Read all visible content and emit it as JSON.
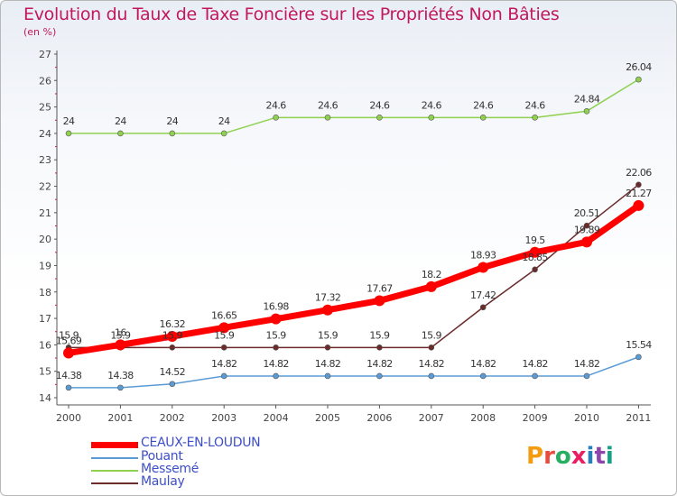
{
  "title": "Evolution du Taux de Taxe Foncière sur les Propriétés Non Bâties",
  "unit_label": "(en %)",
  "logo_text": "Proxiti",
  "chart_data": {
    "type": "line",
    "x": [
      "2000",
      "2001",
      "2002",
      "2003",
      "2004",
      "2005",
      "2006",
      "2007",
      "2008",
      "2009",
      "2010",
      "2011"
    ],
    "ylim": [
      14,
      27
    ],
    "yticks": [
      14,
      15,
      16,
      17,
      18,
      19,
      20,
      21,
      22,
      23,
      24,
      25,
      26,
      27
    ],
    "grid": false,
    "legend_position": "bottom-left",
    "series": [
      {
        "name": "CEAUX-EN-LOUDUN",
        "color": "#ff0000",
        "values": [
          15.69,
          16,
          16.32,
          16.65,
          16.98,
          17.32,
          17.67,
          18.2,
          18.93,
          19.5,
          19.89,
          21.27
        ],
        "labels": [
          "15.69",
          "16",
          "16.32",
          "16.65",
          "16.98",
          "17.32",
          "17.67",
          "18.2",
          "18.93",
          "19.5",
          "19.89",
          "21.27"
        ]
      },
      {
        "name": "Pouant",
        "color": "#5b9bd5",
        "values": [
          14.38,
          14.38,
          14.52,
          14.82,
          14.82,
          14.82,
          14.82,
          14.82,
          14.82,
          14.82,
          14.82,
          15.54
        ],
        "labels": [
          "14.38",
          "14.38",
          "14.52",
          "14.82",
          "14.82",
          "14.82",
          "14.82",
          "14.82",
          "14.82",
          "14.82",
          "14.82",
          "15.54"
        ]
      },
      {
        "name": "Messemé",
        "color": "#8fd14f",
        "values": [
          24,
          24,
          24,
          24,
          24.6,
          24.6,
          24.6,
          24.6,
          24.6,
          24.6,
          24.84,
          26.04
        ],
        "labels": [
          "24",
          "24",
          "24",
          "24",
          "24.6",
          "24.6",
          "24.6",
          "24.6",
          "24.6",
          "24.6",
          "24.84",
          "26.04"
        ]
      },
      {
        "name": "Maulay",
        "color": "#6b2b2b",
        "values": [
          15.9,
          15.9,
          15.9,
          15.9,
          15.9,
          15.9,
          15.9,
          15.9,
          17.42,
          18.85,
          20.51,
          22.06
        ],
        "labels": [
          "15.9",
          "15.9",
          "15.9",
          "15.9",
          "15.9",
          "15.9",
          "15.9",
          "15.9",
          "17.42",
          "18.85",
          "20.51",
          "22.06"
        ]
      }
    ]
  }
}
